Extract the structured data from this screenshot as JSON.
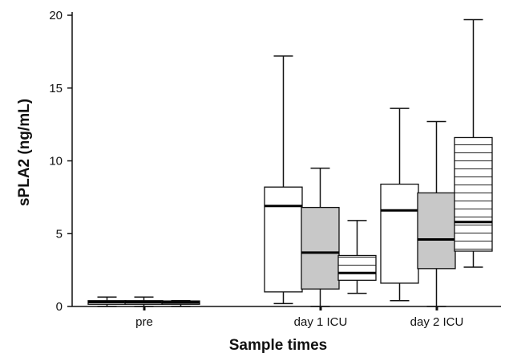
{
  "chart_data": {
    "type": "boxplot",
    "xlabel": "Sample times",
    "ylabel": "sPLA2 (ng/mL)",
    "ylim": [
      0,
      20
    ],
    "yticks": [
      0,
      5,
      10,
      15,
      20
    ],
    "categories": [
      "pre",
      "day 1 ICU",
      "day 2 ICU"
    ],
    "grid": false,
    "legend": "none",
    "group_styles": [
      {
        "fill": "#ffffff",
        "pattern": "none"
      },
      {
        "fill": "#c8c8c8",
        "pattern": "none"
      },
      {
        "fill": "#ffffff",
        "pattern": "horizontal-lines"
      }
    ],
    "boxes": [
      [
        {
          "min": 0.0,
          "q1": 0.15,
          "median": 0.3,
          "q3": 0.4,
          "max": 0.65
        },
        {
          "min": 0.0,
          "q1": 0.15,
          "median": 0.3,
          "q3": 0.4,
          "max": 0.65
        },
        {
          "min": 0.0,
          "q1": 0.15,
          "median": 0.28,
          "q3": 0.38,
          "max": 0.4
        }
      ],
      [
        {
          "min": 0.2,
          "q1": 1.0,
          "median": 6.9,
          "q3": 8.2,
          "max": 17.2
        },
        {
          "min": 0.0,
          "q1": 1.2,
          "median": 3.7,
          "q3": 6.8,
          "max": 9.5
        },
        {
          "min": 0.9,
          "q1": 1.8,
          "median": 2.3,
          "q3": 3.5,
          "max": 5.9
        }
      ],
      [
        {
          "min": 0.4,
          "q1": 1.6,
          "median": 6.6,
          "q3": 8.4,
          "max": 13.6
        },
        {
          "min": 0.0,
          "q1": 2.6,
          "median": 4.6,
          "q3": 7.8,
          "max": 12.7
        },
        {
          "min": 2.7,
          "q1": 3.8,
          "median": 5.8,
          "q3": 11.6,
          "max": 19.7
        }
      ]
    ]
  }
}
